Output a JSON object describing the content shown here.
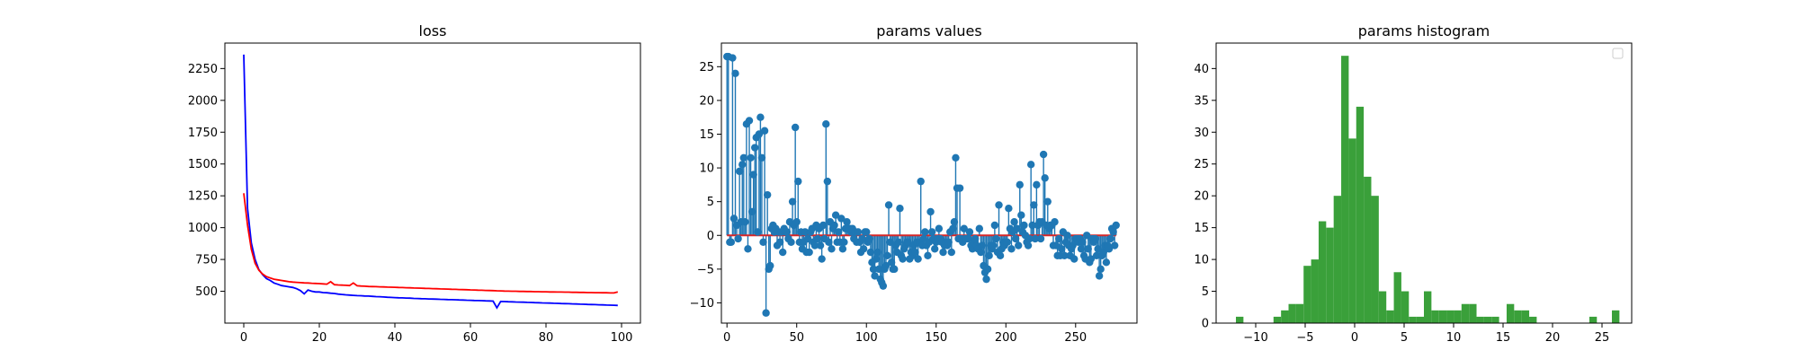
{
  "colors": {
    "loss_blue": "#0000ff",
    "loss_red": "#ff0000",
    "stem_blue": "#1f77b4",
    "baseline_red": "#d62728",
    "hist_green": "#3aa03a"
  },
  "chart_data": [
    {
      "type": "line",
      "title": "loss",
      "xlabel": "",
      "ylabel": "",
      "xlim": [
        -5,
        105
      ],
      "ylim": [
        250,
        2450
      ],
      "xticks": [
        0,
        20,
        40,
        60,
        80,
        100
      ],
      "yticks": [
        500,
        750,
        1000,
        1250,
        1500,
        1750,
        2000,
        2250
      ],
      "grid": false,
      "series": [
        {
          "color": "#0000ff",
          "x": [
            0,
            1,
            2,
            3,
            4,
            5,
            6,
            7,
            8,
            9,
            10,
            11,
            12,
            13,
            14,
            15,
            16,
            17,
            18,
            19,
            20,
            21,
            22,
            23,
            24,
            25,
            26,
            27,
            28,
            29,
            30,
            31,
            32,
            33,
            34,
            35,
            36,
            37,
            38,
            39,
            40,
            41,
            42,
            43,
            44,
            45,
            46,
            47,
            48,
            49,
            50,
            51,
            52,
            53,
            54,
            55,
            56,
            57,
            58,
            59,
            60,
            61,
            62,
            63,
            64,
            65,
            66,
            67,
            68,
            69,
            70,
            71,
            72,
            73,
            74,
            75,
            76,
            77,
            78,
            79,
            80,
            81,
            82,
            83,
            84,
            85,
            86,
            87,
            88,
            89,
            90,
            91,
            92,
            93,
            94,
            95,
            96,
            97,
            98,
            99
          ],
          "values": [
            2360,
            1150,
            880,
            750,
            670,
            630,
            600,
            585,
            565,
            555,
            545,
            540,
            535,
            530,
            520,
            505,
            480,
            510,
            500,
            495,
            495,
            490,
            488,
            485,
            483,
            478,
            475,
            472,
            470,
            468,
            466,
            465,
            463,
            462,
            460,
            458,
            457,
            455,
            453,
            452,
            450,
            449,
            448,
            447,
            446,
            444,
            443,
            442,
            441,
            440,
            439,
            438,
            437,
            436,
            435,
            434,
            433,
            432,
            431,
            430,
            429,
            428,
            427,
            426,
            425,
            424,
            423,
            370,
            420,
            419,
            418,
            417,
            416,
            415,
            414,
            413,
            412,
            411,
            410,
            409,
            408,
            407,
            406,
            405,
            404,
            403,
            402,
            401,
            400,
            399,
            398,
            397,
            396,
            395,
            394,
            393,
            392,
            391,
            390,
            389
          ]
        },
        {
          "color": "#ff0000",
          "x": [
            0,
            1,
            2,
            3,
            4,
            5,
            6,
            7,
            8,
            9,
            10,
            11,
            12,
            13,
            14,
            15,
            16,
            17,
            18,
            19,
            20,
            21,
            22,
            23,
            24,
            25,
            26,
            27,
            28,
            29,
            30,
            31,
            32,
            33,
            34,
            35,
            36,
            37,
            38,
            39,
            40,
            41,
            42,
            43,
            44,
            45,
            46,
            47,
            48,
            49,
            50,
            51,
            52,
            53,
            54,
            55,
            56,
            57,
            58,
            59,
            60,
            61,
            62,
            63,
            64,
            65,
            66,
            67,
            68,
            69,
            70,
            71,
            72,
            73,
            74,
            75,
            76,
            77,
            78,
            79,
            80,
            81,
            82,
            83,
            84,
            85,
            86,
            87,
            88,
            89,
            90,
            91,
            92,
            93,
            94,
            95,
            96,
            97,
            98,
            99
          ],
          "values": [
            1270,
            1020,
            830,
            720,
            665,
            635,
            615,
            605,
            595,
            590,
            585,
            580,
            575,
            572,
            570,
            568,
            566,
            565,
            563,
            562,
            560,
            558,
            556,
            575,
            552,
            550,
            548,
            547,
            545,
            565,
            543,
            541,
            540,
            538,
            537,
            536,
            535,
            534,
            533,
            532,
            531,
            530,
            529,
            528,
            527,
            526,
            525,
            524,
            523,
            522,
            521,
            520,
            519,
            518,
            517,
            516,
            515,
            514,
            513,
            512,
            511,
            510,
            509,
            508,
            507,
            506,
            505,
            504,
            503,
            502,
            501,
            500,
            500,
            499,
            499,
            498,
            498,
            497,
            497,
            496,
            496,
            495,
            495,
            494,
            494,
            493,
            493,
            492,
            492,
            491,
            491,
            490,
            490,
            489,
            489,
            488,
            488,
            487,
            487,
            495
          ]
        }
      ]
    },
    {
      "type": "stem",
      "title": "params values",
      "xlabel": "",
      "ylabel": "",
      "xlim": [
        -4,
        294
      ],
      "ylim": [
        -13,
        28.5
      ],
      "xticks": [
        0,
        50,
        100,
        150,
        200,
        250
      ],
      "yticks": [
        -10,
        -5,
        0,
        5,
        10,
        15,
        20,
        25
      ],
      "grid": false,
      "baseline": 0,
      "values": [
        26.5,
        26.5,
        -1,
        -1,
        26.3,
        2.5,
        24,
        1.5,
        -0.5,
        9.5,
        2,
        10.5,
        11.5,
        2,
        16.5,
        -2,
        17,
        11.5,
        3.5,
        9,
        13,
        14.5,
        0.5,
        15,
        17.5,
        11.5,
        -1,
        15.5,
        -11.5,
        6,
        -5,
        -4.5,
        1,
        1.5,
        0.5,
        1,
        -1.5,
        0.5,
        -1,
        0.5,
        -2.5,
        1,
        0.5,
        0.5,
        -0.5,
        2,
        -1,
        5,
        1.5,
        16,
        2,
        8,
        -1,
        0.5,
        -2,
        -1,
        0.5,
        -2.5,
        -0.5,
        -2.5,
        0.5,
        1,
        -1,
        -1.5,
        1.5,
        -0.5,
        1,
        -1.5,
        -3.5,
        1.5,
        -0.5,
        16.5,
        8,
        -1,
        2,
        -2,
        1,
        1.5,
        3,
        -1,
        0.5,
        -1,
        2.5,
        -2,
        -1,
        1,
        2,
        1,
        1,
        0.5,
        1,
        -0.5,
        0.5,
        -1,
        0.5,
        -1,
        -2.5,
        -0.5,
        -2,
        0.5,
        0.5,
        -1,
        -0.5,
        -2.5,
        -4,
        -5,
        -6,
        -3.5,
        -2.5,
        -5,
        -6.5,
        -7,
        -7.5,
        -5,
        -4.5,
        -3,
        4.5,
        -1,
        -4,
        -5,
        -5,
        -1.5,
        -2.5,
        -1,
        4,
        -3,
        -3.5,
        -2,
        -1.5,
        -1,
        -1,
        -3.5,
        -2.5,
        -3,
        -1.5,
        -2.5,
        -1,
        -3.5,
        -1,
        8,
        -1.5,
        -0.5,
        0.5,
        -1.5,
        -3,
        -1,
        3.5,
        0.5,
        -0.5,
        -2,
        -1,
        -0.5,
        1,
        -0.5,
        -1,
        -2.5,
        -1.5,
        -1,
        -1.5,
        -1,
        0.5,
        -2.5,
        1,
        2,
        11.5,
        7,
        -0.5,
        7,
        -0.5,
        -1,
        1,
        -0.5,
        -0.5,
        -0.5,
        0.5,
        -1.5,
        -2,
        -1,
        -0.5,
        -1.5,
        -2,
        1,
        -2.5,
        -1.5,
        -4.5,
        -5.5,
        -6.5,
        -5,
        -3,
        -1.5,
        -2,
        -1.5,
        1.5,
        -0.5,
        -2.5,
        4.5,
        -3,
        -2,
        -1,
        -1.5,
        -1,
        -1,
        4,
        1,
        -2,
        0.5,
        2,
        -0.5,
        1,
        -1.5,
        7.5,
        3,
        0.5,
        1.5,
        0,
        -1,
        -1.5,
        -0.5,
        10.5,
        1.5,
        4.5,
        -0.5,
        7.5,
        1.5,
        2,
        -0.5,
        2,
        12,
        8.5,
        1.5,
        5,
        1,
        1.5,
        1.5,
        -1.5,
        2,
        -1.5,
        -3,
        -0.5,
        -3,
        -2,
        0.5,
        -3,
        -1,
        0,
        -1.5,
        -3,
        -2,
        -1.5,
        -3.5,
        -0.5,
        -0.5,
        -1,
        -0.5,
        -2,
        -1,
        -3,
        -3.5,
        0,
        -2,
        -4,
        -3.5,
        -0.5,
        -1,
        -0.5,
        -3,
        -2,
        -6,
        -5,
        -3,
        -2.5,
        -1.5,
        -4,
        -1.5,
        -2,
        -0.5,
        1,
        0.5,
        -1.5,
        1.5
      ],
      "stem_color": "#1f77b4",
      "baseline_color": "#d62728"
    },
    {
      "type": "histogram",
      "title": "params histogram",
      "xlabel": "",
      "ylabel": "",
      "xlim": [
        -14,
        28
      ],
      "ylim": [
        0,
        44
      ],
      "xticks": [
        -10,
        -5,
        0,
        5,
        10,
        15,
        20,
        25
      ],
      "yticks": [
        0,
        5,
        10,
        15,
        20,
        25,
        30,
        35,
        40
      ],
      "grid": false,
      "legend": "top-right",
      "bin_width": 0.76,
      "bins_start": -12.0,
      "counts": [
        1,
        0,
        0,
        0,
        0,
        1,
        2,
        3,
        3,
        9,
        10,
        16,
        15,
        20,
        42,
        29,
        34,
        23,
        20,
        5,
        2,
        8,
        5,
        1,
        1,
        5,
        2,
        2,
        2,
        2,
        3,
        3,
        1,
        1,
        1,
        0,
        3,
        2,
        2,
        1,
        0,
        0,
        0,
        0,
        0,
        0,
        0,
        1,
        0,
        0,
        2
      ],
      "color": "#3aa03a"
    }
  ]
}
